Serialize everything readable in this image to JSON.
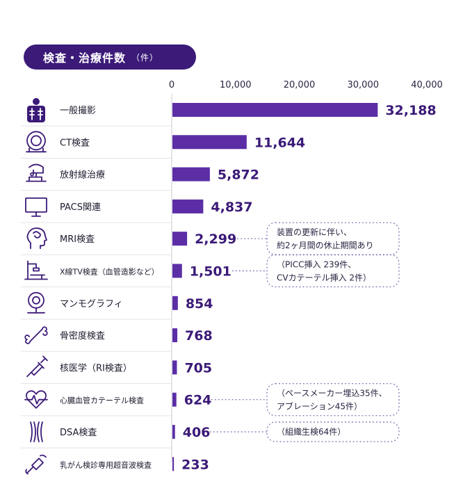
{
  "title": "検査・治療件数",
  "unit": "（件）",
  "colors": {
    "bar": "#5b2ea6",
    "title_bg": "#3b1a78",
    "value": "#3b1a78",
    "value_light": "#7b5cc0",
    "annotation_border": "#7b6bb0",
    "icon": "#3b1a78"
  },
  "chart_data": {
    "type": "bar",
    "orientation": "horizontal",
    "xlim": [
      0,
      40000
    ],
    "ticks": [
      0,
      10000,
      20000,
      30000,
      40000
    ],
    "tick_labels": [
      "0",
      "10,000",
      "20,000",
      "30,000",
      "40,000"
    ],
    "categories": [
      "一般撮影",
      "CT検査",
      "放射線治療",
      "PACS関連",
      "MRI検査",
      "X線TV検査（血管造影など）",
      "マンモグラフィ",
      "骨密度検査",
      "核医学（RI検査）",
      "心臓血管カテーテル検査",
      "DSA検査",
      "乳がん検診専用超音波検査"
    ],
    "values": [
      32188,
      11644,
      5872,
      4837,
      2299,
      1501,
      854,
      768,
      705,
      624,
      406,
      233
    ],
    "value_labels": [
      "32,188",
      "11,644",
      "5,872",
      "4,837",
      "2,299",
      "1,501",
      "854",
      "768",
      "705",
      "624",
      "406",
      "233"
    ],
    "icons": [
      "xray-chest-icon",
      "ct-scanner-icon",
      "radiotherapy-icon",
      "monitor-icon",
      "brain-head-icon",
      "xray-tv-icon",
      "mammography-icon",
      "bone-icon",
      "syringe-icon",
      "heart-pulse-icon",
      "vessels-icon",
      "ultrasound-probe-icon"
    ],
    "annotations": [
      {
        "category_index": 4,
        "lines": [
          "装置の更新に伴い、",
          "約2ヶ月間の休止期間あり"
        ]
      },
      {
        "category_index": 5,
        "lines": [
          "（PICC挿入 239件、",
          "CVカテーテル挿入 2件）"
        ]
      },
      {
        "category_index": 9,
        "lines": [
          "（ペースメーカー埋込35件、",
          "アブレーション45件）"
        ]
      },
      {
        "category_index": 10,
        "lines": [
          "（組織生検64件）"
        ]
      }
    ]
  }
}
